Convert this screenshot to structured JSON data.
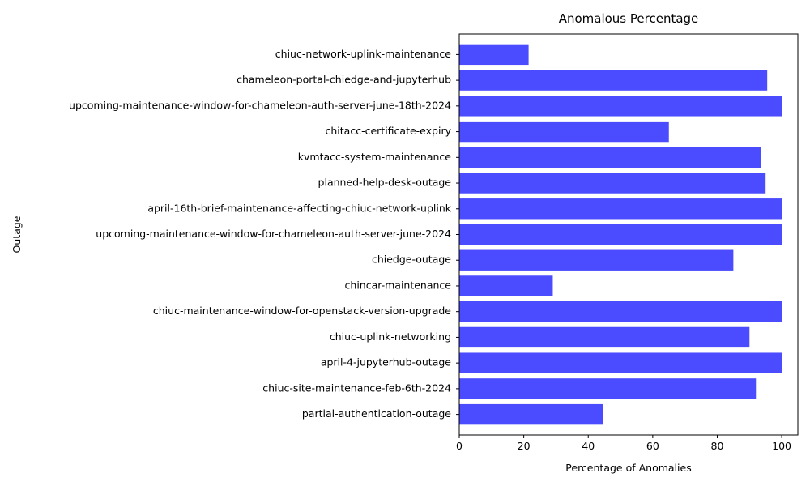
{
  "chart_data": {
    "type": "bar",
    "orientation": "horizontal",
    "title": "Anomalous Percentage",
    "xlabel": "Percentage of Anomalies",
    "ylabel": "Outage",
    "xlim": [
      0,
      105
    ],
    "xticks": [
      0,
      20,
      40,
      60,
      80,
      100
    ],
    "grid": false,
    "bar_color": "#4b4bff",
    "categories": [
      "partial-authentication-outage",
      "chiuc-site-maintenance-feb-6th-2024",
      "april-4-jupyterhub-outage",
      "chiuc-uplink-networking",
      "chiuc-maintenance-window-for-openstack-version-upgrade",
      "chincar-maintenance",
      "chiedge-outage",
      "upcoming-maintenance-window-for-chameleon-auth-server-june-2024",
      "april-16th-brief-maintenance-affecting-chiuc-network-uplink",
      "planned-help-desk-outage",
      "kvmtacc-system-maintenance",
      "chitacc-certificate-expiry",
      "upcoming-maintenance-window-for-chameleon-auth-server-june-18th-2024",
      "chameleon-portal-chiedge-and-jupyterhub",
      "chiuc-network-uplink-maintenance"
    ],
    "values": [
      44.5,
      92,
      100,
      90,
      100,
      29,
      85,
      100,
      100,
      95,
      93.5,
      65,
      100,
      95.5,
      21.5
    ]
  }
}
